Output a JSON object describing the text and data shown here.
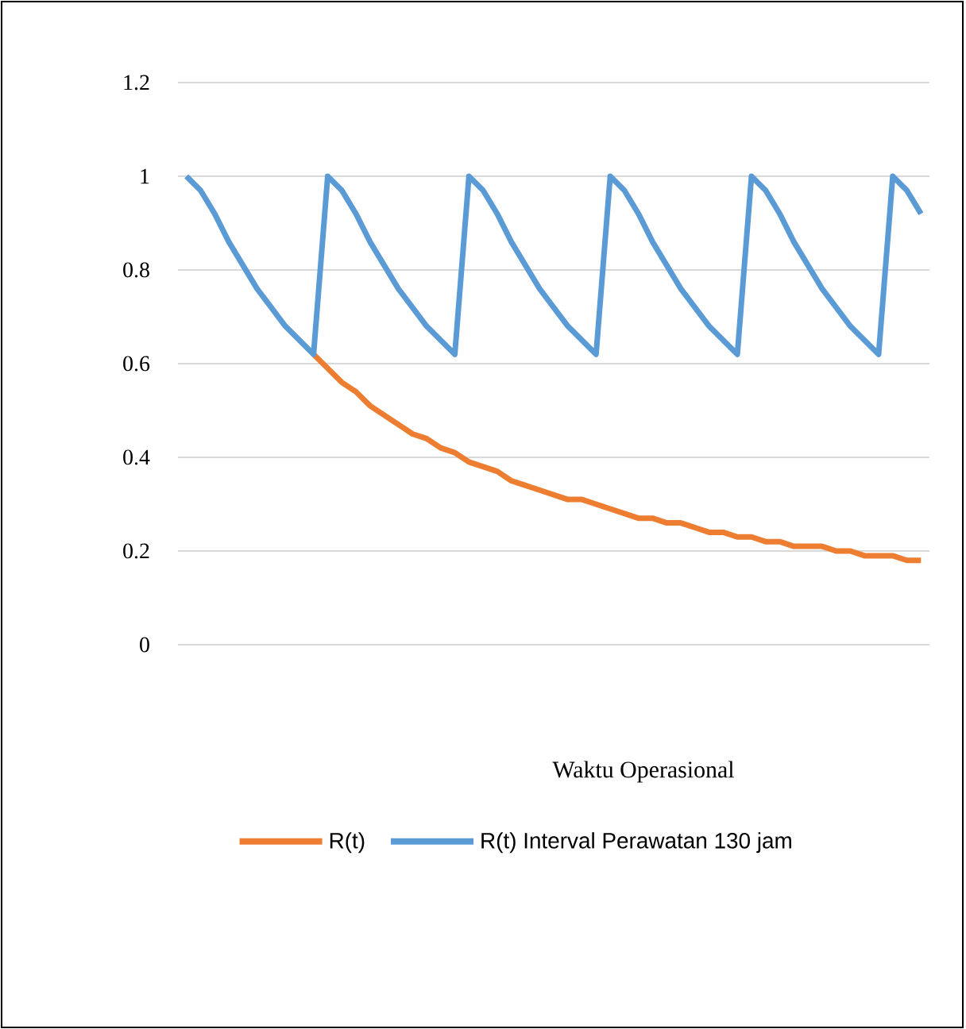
{
  "chart_data": {
    "type": "line",
    "xlabel": "Waktu Operasional",
    "categories": [
      null,
      null,
      null,
      null,
      null,
      null,
      null,
      null,
      null,
      null,
      null,
      null,
      null,
      null,
      null,
      null,
      null,
      null,
      null,
      null,
      null,
      null,
      null,
      null,
      null,
      null,
      null,
      null,
      null,
      null,
      null,
      null,
      null,
      null,
      null,
      null,
      null,
      null,
      null,
      null,
      null,
      null,
      null,
      null,
      null,
      null,
      null,
      null,
      null,
      null,
      null,
      null,
      null
    ],
    "series": [
      {
        "name": "R(t)",
        "color": "#ed7d31",
        "values": [
          null,
          null,
          null,
          null,
          null,
          null,
          null,
          null,
          null,
          0.62,
          0.59,
          0.56,
          0.54,
          0.51,
          0.49,
          0.47,
          0.45,
          0.44,
          0.42,
          0.41,
          0.39,
          0.38,
          0.37,
          0.35,
          0.34,
          0.33,
          0.32,
          0.31,
          0.31,
          0.3,
          0.29,
          0.28,
          0.27,
          0.27,
          0.26,
          0.26,
          0.25,
          0.24,
          0.24,
          0.23,
          0.23,
          0.22,
          0.22,
          0.21,
          0.21,
          0.21,
          0.2,
          0.2,
          0.19,
          0.19,
          0.19,
          0.18,
          0.18
        ]
      },
      {
        "name": "R(t) Interval Perawatan 130 jam",
        "color": "#5b9bd5",
        "values": [
          1,
          0.97,
          0.92,
          0.86,
          0.81,
          0.76,
          0.72,
          0.68,
          0.65,
          0.62,
          1,
          0.97,
          0.92,
          0.86,
          0.81,
          0.76,
          0.72,
          0.68,
          0.65,
          0.62,
          1,
          0.97,
          0.92,
          0.86,
          0.81,
          0.76,
          0.72,
          0.68,
          0.65,
          0.62,
          1,
          0.97,
          0.92,
          0.86,
          0.81,
          0.76,
          0.72,
          0.68,
          0.65,
          0.62,
          1,
          0.97,
          0.92,
          0.86,
          0.81,
          0.76,
          0.72,
          0.68,
          0.65,
          0.62,
          1,
          0.97,
          0.92
        ]
      }
    ],
    "ylim": [
      0,
      1.2
    ],
    "yticks": [
      0,
      0.2,
      0.4,
      0.6,
      0.8,
      1,
      1.2
    ],
    "grid": "y",
    "legend": "bottom",
    "tick_labels": "y",
    "marker": "none",
    "line_style": "solid"
  }
}
